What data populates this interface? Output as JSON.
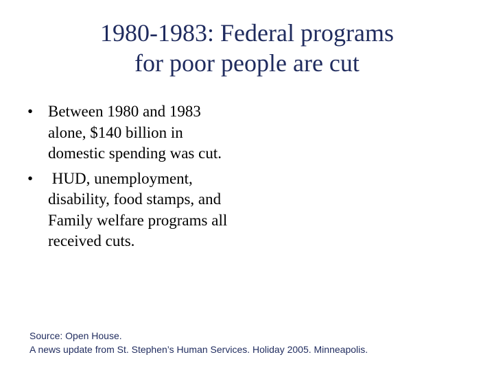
{
  "slide": {
    "title": {
      "line1": "1980-1983:  Federal programs",
      "line2": "for poor people are cut"
    },
    "bullet_marker": "•",
    "bullets": [
      "Between 1980 and 1983 alone, $140 billion in domestic spending was cut.",
      " HUD, unemployment, disability, food stamps, and Family welfare programs all received cuts."
    ],
    "source": {
      "line1": "Source:  Open House.",
      "line2": "A news update from St. Stephen’s Human Services.  Holiday 2005.  Minneapolis."
    },
    "colors": {
      "title": "#1f2b5e",
      "body_text": "#000000",
      "source": "#1f2b5e",
      "background": "#ffffff"
    }
  }
}
